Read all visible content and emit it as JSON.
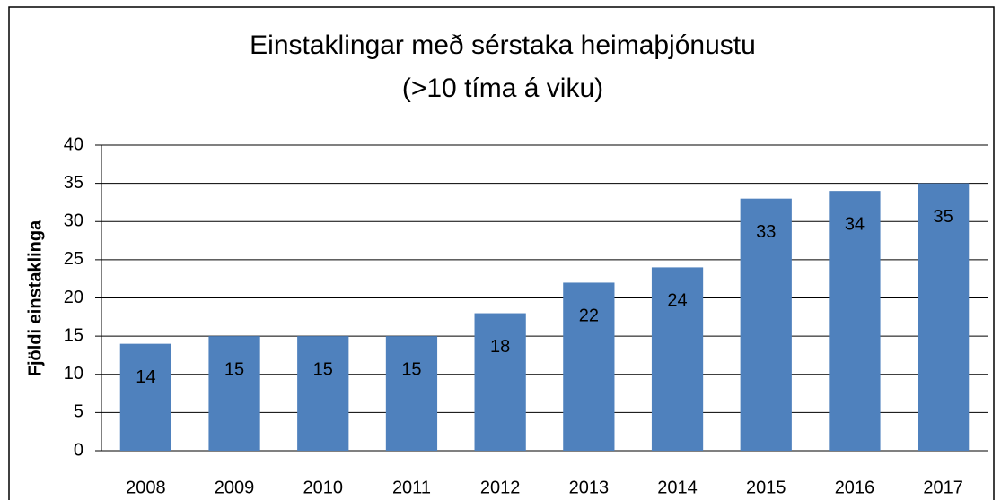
{
  "chart_data": {
    "type": "bar",
    "title": "Einstaklingar með sérstaka heimaþjónustu",
    "subtitle": "(>10 tíma á viku)",
    "y_label": "Fjöldi einstaklinga",
    "categories": [
      "2008",
      "2009",
      "2010",
      "2011",
      "2012",
      "2013",
      "2014",
      "2015",
      "2016",
      "2017"
    ],
    "values": [
      14,
      15,
      15,
      15,
      18,
      22,
      24,
      33,
      34,
      35
    ],
    "color": "#4f81bd",
    "ylim": [
      0,
      40
    ],
    "yticks": [
      0,
      5,
      10,
      15,
      20,
      25,
      30,
      35,
      40
    ],
    "grid": true
  }
}
